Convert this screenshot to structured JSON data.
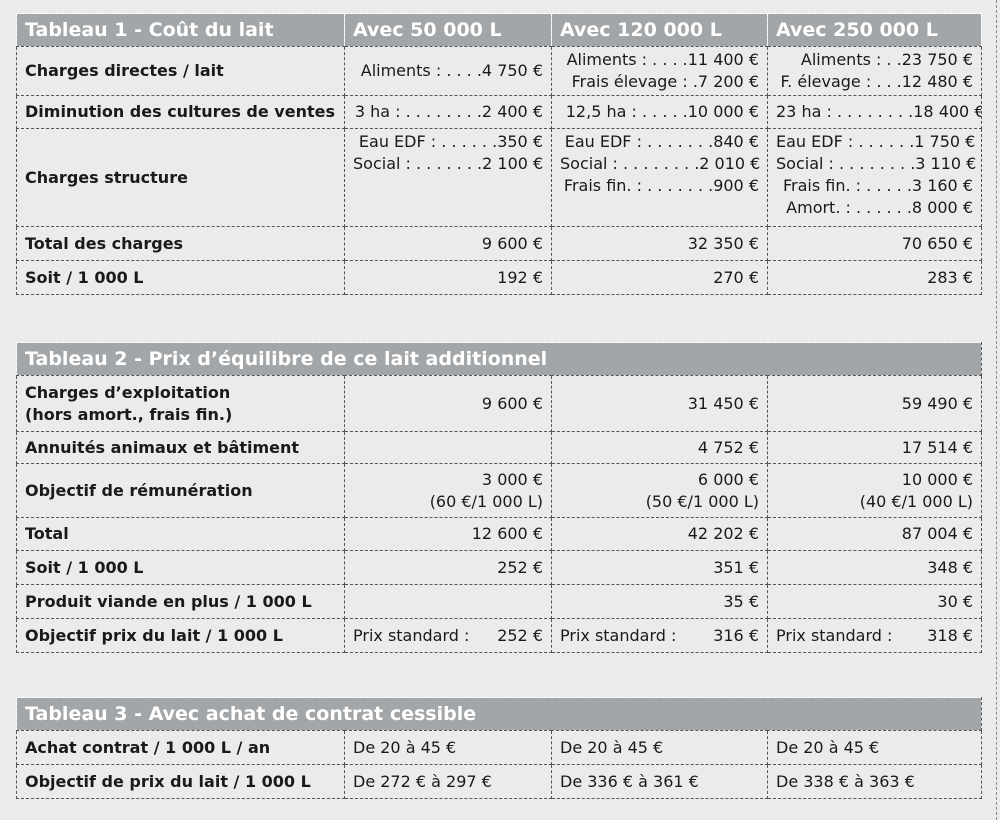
{
  "table1": {
    "header": [
      "Tableau 1 - Coût du lait",
      "Avec 50 000 L",
      "Avec 120 000 L",
      "Avec 250 000 L"
    ],
    "rows": [
      {
        "label": "Charges directes / lait",
        "cells": [
          [
            "Aliments : . . . .4 750 €"
          ],
          [
            "Aliments : . . . .11 400 €",
            "Frais élevage : .7 200 €"
          ],
          [
            "Aliments : . .23 750 €",
            "F. élevage : . . .12 480 €"
          ]
        ]
      },
      {
        "label": "Diminution des cultures de ventes",
        "cells": [
          [
            "3 ha : . . . . . . . .2 400 €"
          ],
          [
            "12,5 ha : . . . . .10 000 €"
          ],
          [
            "23 ha : . . . . . . . .18 400 €"
          ]
        ]
      },
      {
        "label": "Charges structure",
        "cells": [
          [
            "Eau EDF : . . . . . .350 €",
            "Social : . . . . . . .2 100 €"
          ],
          [
            "Eau EDF : . . . . . . .840 €",
            "Social : . . . . . . . .2 010 €",
            "Frais fin. : . . . . . . .900 €"
          ],
          [
            "Eau EDF : . . . . . .1 750 €",
            "Social : . . . . . . . .3 110 €",
            "Frais fin. : . . . . .3 160 €",
            "Amort. : . . . . . .8 000 €"
          ]
        ]
      },
      {
        "label": "Total des charges",
        "values": [
          "9 600 €",
          "32 350 €",
          "70 650 €"
        ]
      },
      {
        "label": "Soit / 1 000 L",
        "values": [
          "192 €",
          "270 €",
          "283 €"
        ]
      }
    ]
  },
  "table2": {
    "title": "Tableau 2 - Prix d’équilibre de ce lait additionnel",
    "rows": [
      {
        "label": [
          "Charges d’exploitation",
          "(hors amort., frais fin.)"
        ],
        "values": [
          "9 600 €",
          "31 450 €",
          "59 490 €"
        ]
      },
      {
        "label": [
          "Annuités animaux et bâtiment"
        ],
        "values": [
          "",
          "4 752 €",
          "17 514 €"
        ]
      },
      {
        "label": [
          "Objectif de rémunération"
        ],
        "values": [
          "3 000 €",
          "6 000 €",
          "10 000 €"
        ],
        "subvalues": [
          "(60 €/1 000 L)",
          "(50 €/1 000 L)",
          "(40 €/1 000 L)"
        ]
      },
      {
        "label": [
          "Total"
        ],
        "values": [
          "12 600 €",
          "42 202 €",
          "87 004 €"
        ]
      },
      {
        "label": [
          "Soit / 1 000 L"
        ],
        "values": [
          "252 €",
          "351 €",
          "348 €"
        ]
      },
      {
        "label": [
          "Produit viande en plus / 1 000 L"
        ],
        "values": [
          "",
          "35 €",
          "30 €"
        ]
      },
      {
        "label": [
          "Objectif prix du lait / 1 000 L"
        ],
        "prefix": "Prix standard :",
        "values": [
          "252 €",
          "316 €",
          "318 €"
        ]
      }
    ]
  },
  "table3": {
    "title": "Tableau 3 - Avec achat de contrat cessible",
    "rows": [
      {
        "label": "Achat contrat / 1 000 L / an",
        "values": [
          "De 20 à 45 €",
          "De 20 à 45 €",
          "De 20 à 45 €"
        ]
      },
      {
        "label": "Objectif de prix du lait / 1 000 L",
        "values": [
          "De 272 € à 297 €",
          "De 336 € à 361 €",
          "De 338 € à 363 €"
        ]
      }
    ]
  }
}
